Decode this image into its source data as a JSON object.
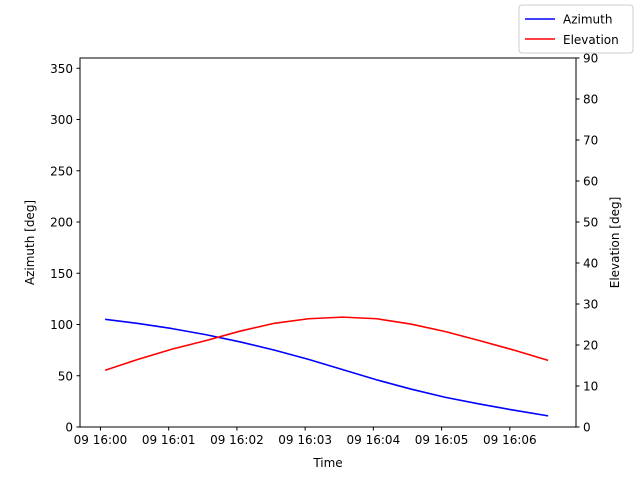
{
  "chart_data": {
    "type": "line",
    "xlabel": "Time",
    "ylabel_left": "Azimuth [deg]",
    "ylabel_right": "Elevation [deg]",
    "x_ticks": [
      "09 16:00",
      "09 16:01",
      "09 16:02",
      "09 16:03",
      "09 16:04",
      "09 16:05",
      "09 16:06"
    ],
    "x_tick_minutes": [
      0,
      1,
      2,
      3,
      4,
      5,
      6
    ],
    "xlim_minutes": [
      -0.3,
      6.97
    ],
    "y_left_ticks": [
      0,
      50,
      100,
      150,
      200,
      250,
      300,
      350
    ],
    "y_left_lim": [
      0,
      360
    ],
    "y_right_ticks": [
      0,
      10,
      20,
      30,
      40,
      50,
      60,
      70,
      80,
      90
    ],
    "y_right_lim": [
      0,
      90
    ],
    "legend_position": "upper-right (outside)",
    "series": [
      {
        "name": "Azimuth",
        "axis": "left",
        "color": "#0000ff",
        "x_minutes": [
          0.08,
          0.55,
          1.05,
          1.55,
          2.05,
          2.55,
          3.05,
          3.55,
          4.05,
          4.55,
          5.05,
          5.55,
          6.05,
          6.55
        ],
        "values": [
          105,
          101,
          96,
          90,
          83,
          75,
          66,
          56,
          46,
          37,
          29,
          22.5,
          16.5,
          11
        ]
      },
      {
        "name": "Elevation",
        "axis": "right",
        "color": "#ff0000",
        "x_minutes": [
          0.08,
          0.55,
          1.05,
          1.55,
          2.05,
          2.55,
          3.05,
          3.55,
          4.05,
          4.55,
          5.05,
          5.55,
          6.05,
          6.55
        ],
        "values": [
          13.9,
          16.5,
          19.0,
          21.1,
          23.4,
          25.3,
          26.4,
          26.8,
          26.4,
          25.1,
          23.3,
          21.1,
          18.8,
          16.3
        ]
      }
    ]
  }
}
